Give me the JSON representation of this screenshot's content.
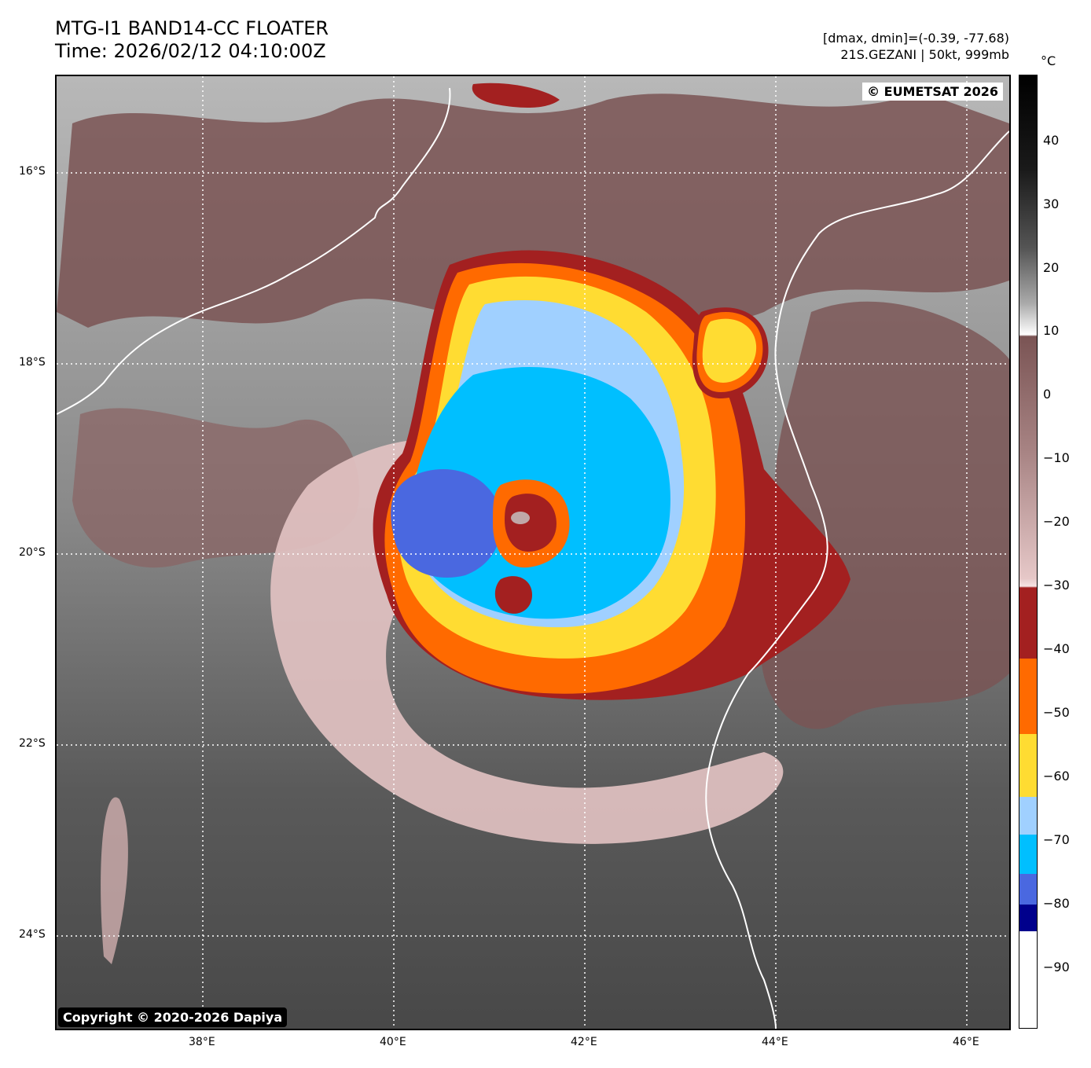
{
  "header": {
    "title_line1": "MTG-I1 BAND14-CC FLOATER",
    "title_line2": "Time: 2026/02/12 04:10:00Z",
    "range_text": "[dmax, dmin]=(-0.39, -77.68)",
    "storm_text": "21S.GEZANI | 50kt, 999mb"
  },
  "map": {
    "watermark_top": "© EUMETSAT 2026",
    "watermark_bottom": "Copyright © 2020-2026 Dapiya",
    "lat_labels": [
      "16°S",
      "18°S",
      "20°S",
      "22°S",
      "24°S"
    ],
    "lon_labels": [
      "38°E",
      "40°E",
      "42°E",
      "44°E",
      "46°E"
    ]
  },
  "colorbar": {
    "unit": "°C",
    "ticks": [
      "40",
      "30",
      "20",
      "10",
      "0",
      "−10",
      "−20",
      "−30",
      "−40",
      "−50",
      "−60",
      "−70",
      "−80",
      "−90"
    ],
    "colors": {
      "black": "#000000",
      "warm_brown": "#7a5454",
      "pink": "#e6c8c8",
      "dark_red": "#a32020",
      "orange": "#ff6a00",
      "yellow": "#ffdc32",
      "light_blue": "#a0d0ff",
      "cyan_blue": "#00bfff",
      "royal_blue": "#4a68e0",
      "navy": "#00008c"
    }
  }
}
